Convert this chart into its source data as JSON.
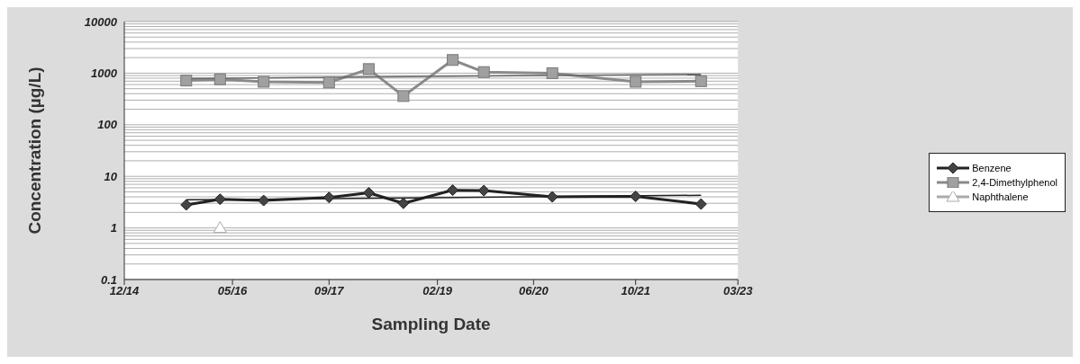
{
  "chart_data": {
    "type": "line",
    "xlabel": "Sampling Date",
    "ylabel": "Concentration (µg/L)",
    "log": "y",
    "grid": "y",
    "legend": "right",
    "ylim": [
      0.1,
      10000
    ],
    "yticks": [
      0.1,
      {
        "value": 0.2,
        "label": null
      },
      {
        "value": 0.3,
        "label": null
      },
      {
        "value": 0.4,
        "label": null
      },
      {
        "value": 0.5,
        "label": null
      },
      {
        "value": 0.6,
        "label": null
      },
      {
        "value": 0.7,
        "label": null
      },
      {
        "value": 0.8,
        "label": null
      },
      {
        "value": 0.9,
        "label": null
      },
      1,
      {
        "value": 2,
        "label": null
      },
      {
        "value": 3,
        "label": null
      },
      {
        "value": 4,
        "label": null
      },
      {
        "value": 5,
        "label": null
      },
      {
        "value": 6,
        "label": null
      },
      {
        "value": 7,
        "label": null
      },
      {
        "value": 8,
        "label": null
      },
      {
        "value": 9,
        "label": null
      },
      10,
      {
        "value": 20,
        "label": null
      },
      {
        "value": 30,
        "label": null
      },
      {
        "value": 40,
        "label": null
      },
      {
        "value": 50,
        "label": null
      },
      {
        "value": 60,
        "label": null
      },
      {
        "value": 70,
        "label": null
      },
      {
        "value": 80,
        "label": null
      },
      {
        "value": 90,
        "label": null
      },
      100,
      {
        "value": 200,
        "label": null
      },
      {
        "value": 300,
        "label": null
      },
      {
        "value": 400,
        "label": null
      },
      {
        "value": 500,
        "label": null
      },
      {
        "value": 600,
        "label": null
      },
      {
        "value": 700,
        "label": null
      },
      {
        "value": 800,
        "label": null
      },
      {
        "value": 900,
        "label": null
      },
      1000,
      {
        "value": 2000,
        "label": null
      },
      {
        "value": 3000,
        "label": null
      },
      {
        "value": 4000,
        "label": null
      },
      {
        "value": 5000,
        "label": null
      },
      {
        "value": 6000,
        "label": null
      },
      {
        "value": 7000,
        "label": null
      },
      {
        "value": 8000,
        "label": null
      },
      {
        "value": 9000,
        "label": null
      },
      10000
    ],
    "xlim": [
      "2014-12-01",
      "2023-03-01"
    ],
    "xticks": [
      {
        "value": "2014-12-01",
        "label": "12/14"
      },
      {
        "value": "2016-05-15",
        "label": "05/16"
      },
      {
        "value": "2017-09-01",
        "label": "09/17"
      },
      {
        "value": "2019-02-15",
        "label": "02/19"
      },
      {
        "value": "2020-06-01",
        "label": "06/20"
      },
      {
        "value": "2021-10-15",
        "label": "10/21"
      },
      {
        "value": "2023-03-01",
        "label": "03/23"
      }
    ],
    "series": [
      {
        "name": "Benzene",
        "color": "#222222",
        "marker": "diamond",
        "x": [
          "2015-10-01",
          "2016-03-15",
          "2016-10-15",
          "2017-09-01",
          "2018-03-15",
          "2018-09-01",
          "2019-05-01",
          "2019-10-01",
          "2020-09-01",
          "2021-10-15",
          "2022-09-01"
        ],
        "values": [
          2.8,
          3.6,
          3.4,
          3.9,
          4.8,
          3.0,
          5.4,
          5.3,
          4.0,
          4.1,
          2.9
        ]
      },
      {
        "name": "2,4-Dimethylphenol",
        "color": "#8a8a8a",
        "marker": "square",
        "x": [
          "2015-10-01",
          "2016-03-15",
          "2016-10-15",
          "2017-09-01",
          "2018-03-15",
          "2018-09-01",
          "2019-05-01",
          "2019-10-01",
          "2020-09-01",
          "2021-10-15",
          "2022-09-01"
        ],
        "values": [
          720,
          760,
          680,
          660,
          1200,
          360,
          1800,
          1050,
          1000,
          680,
          700
        ]
      },
      {
        "name": "Naphthalene",
        "color": "#aaaaaa",
        "marker": "triangle",
        "x": [
          "2016-03-15"
        ],
        "values": [
          1
        ]
      },
      {
        "type": "line",
        "color": "#222222",
        "marker": "none",
        "x": [
          "2015-10-01",
          "2022-09-01"
        ],
        "values": [
          3.5,
          4.3
        ]
      },
      {
        "type": "line",
        "color": "#666666",
        "marker": "none",
        "x": [
          "2015-10-01",
          "2022-09-01"
        ],
        "values": [
          790,
          950
        ]
      }
    ]
  }
}
